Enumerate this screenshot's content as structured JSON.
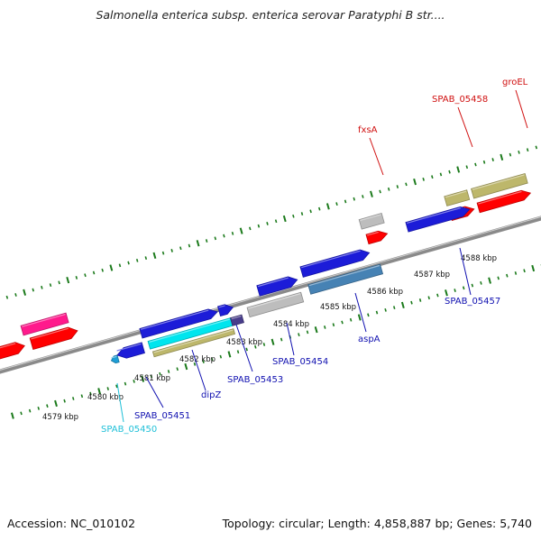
{
  "title": "Salmonella enterica subsp. enterica serovar Paratyphi B str....",
  "footer": {
    "accession": "Accession: NC_010102",
    "stats": "Topology: circular; Length: 4,858,887 bp; Genes: 5,740"
  },
  "colors": {
    "backbone": "#8a8a8a",
    "ticks": "#1b7a1b",
    "red": "#ff0000",
    "blue": "#1c1cd8",
    "pink": "#ff1a8c",
    "gray": "#bdbdbd",
    "steel": "#4682b4",
    "cyan": "#00e5ee",
    "khaki": "#bdb76b",
    "darkslate": "#483d8b",
    "skyblue": "#1e9ed6"
  },
  "scale_labels": [
    "4579 kbp",
    "4580 kbp",
    "4581 kbp",
    "4582 kbp",
    "4583 kbp",
    "4584 kbp",
    "4585 kbp",
    "4586 kbp",
    "4587 kbp",
    "4588 kbp"
  ],
  "gene_labels": [
    {
      "text": "SPAB_05450",
      "color": "#20c0d8"
    },
    {
      "text": "SPAB_05451",
      "color": "#1010b0"
    },
    {
      "text": "dipZ",
      "color": "#1010b0"
    },
    {
      "text": "SPAB_05453",
      "color": "#1010b0"
    },
    {
      "text": "SPAB_05454",
      "color": "#1010b0"
    },
    {
      "text": "aspA",
      "color": "#1010b0"
    },
    {
      "text": "SPAB_05457",
      "color": "#1010b0"
    },
    {
      "text": "fxsA",
      "color": "#d01010"
    },
    {
      "text": "SPAB_05458",
      "color": "#d01010"
    },
    {
      "text": "groEL",
      "color": "#d01010"
    }
  ]
}
